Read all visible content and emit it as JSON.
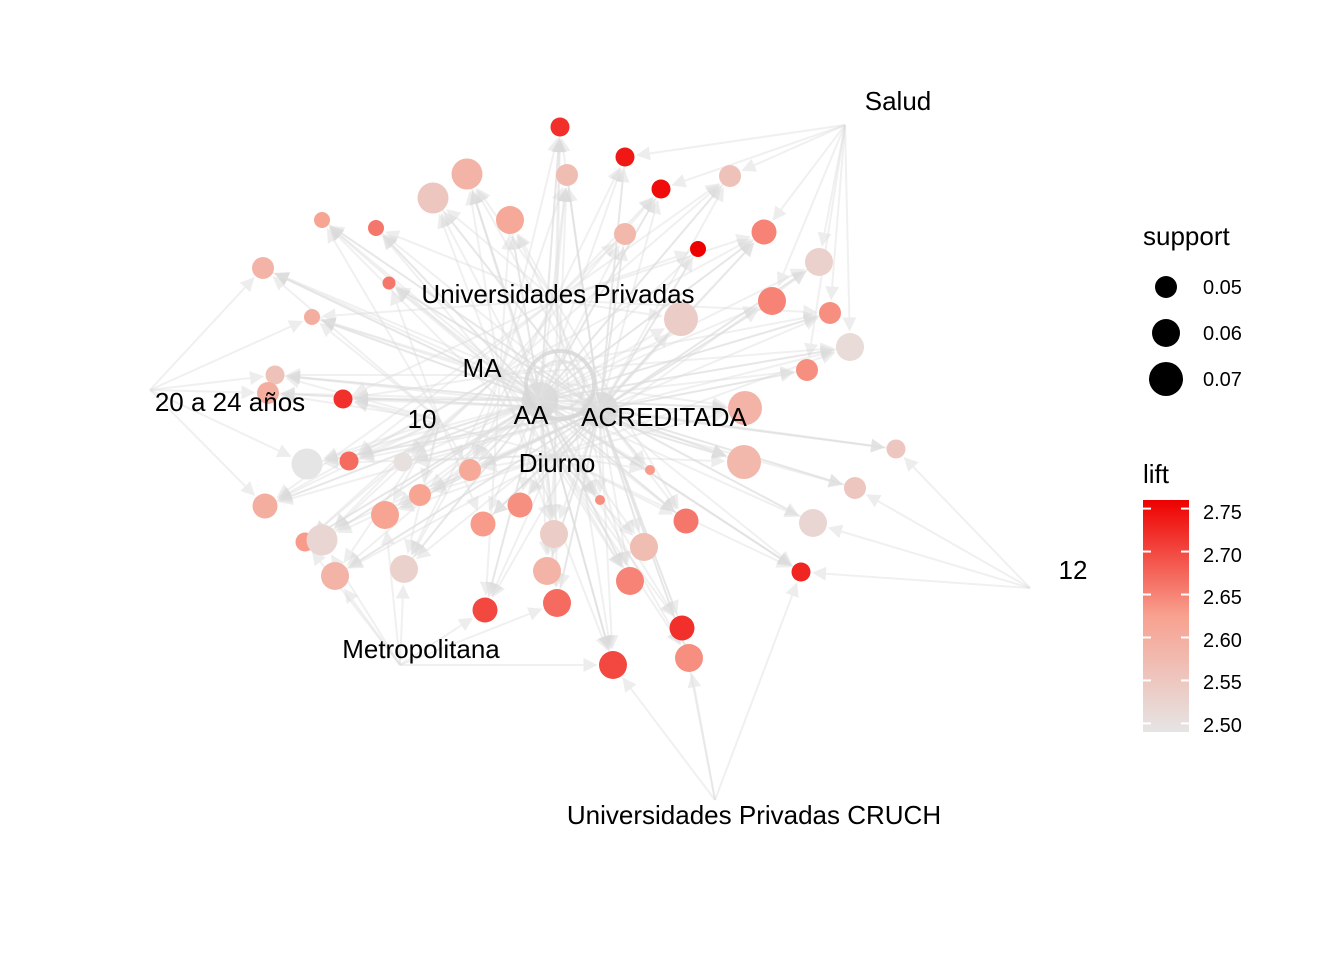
{
  "colors": {
    "edge": "#dedede",
    "lift_low": "#e5e5e5",
    "lift_high": "#ee0000",
    "background": "#ffffff"
  },
  "items": [
    {
      "id": "salud",
      "label": "Salud"
    },
    {
      "id": "univ_priv",
      "label": "Universidades Privadas"
    },
    {
      "id": "ma",
      "label": "MA"
    },
    {
      "id": "edad",
      "label": "20 a 24 años"
    },
    {
      "id": "diez",
      "label": "10"
    },
    {
      "id": "aa",
      "label": "AA"
    },
    {
      "id": "acreditada",
      "label": "ACREDITADA"
    },
    {
      "id": "diurno",
      "label": "Diurno"
    },
    {
      "id": "doce",
      "label": "12"
    },
    {
      "id": "metro",
      "label": "Metropolitana"
    },
    {
      "id": "cruch",
      "label": "Universidades Privadas CRUCH"
    }
  ],
  "legend": {
    "support": {
      "title": "support",
      "entries": [
        "0.05",
        "0.06",
        "0.07"
      ]
    },
    "lift": {
      "title": "lift",
      "ticks": [
        "2.75",
        "2.70",
        "2.65",
        "2.60",
        "2.55",
        "2.50"
      ],
      "range": [
        2.49,
        2.76
      ]
    }
  },
  "chart_data": {
    "type": "network",
    "size_variable": "support",
    "color_variable": "lift",
    "rules": [
      {
        "support": 0.05,
        "lift": 2.72
      },
      {
        "support": 0.05,
        "lift": 2.74
      },
      {
        "support": 0.05,
        "lift": 2.75
      },
      {
        "support": 0.055,
        "lift": 2.57
      },
      {
        "support": 0.055,
        "lift": 2.56
      },
      {
        "support": 0.045,
        "lift": 2.76
      },
      {
        "support": 0.07,
        "lift": 2.59
      },
      {
        "support": 0.07,
        "lift": 2.55
      },
      {
        "support": 0.065,
        "lift": 2.61
      },
      {
        "support": 0.045,
        "lift": 2.62
      },
      {
        "support": 0.045,
        "lift": 2.66
      },
      {
        "support": 0.055,
        "lift": 2.58
      },
      {
        "support": 0.06,
        "lift": 2.65
      },
      {
        "support": 0.04,
        "lift": 2.66
      },
      {
        "support": 0.055,
        "lift": 2.59
      },
      {
        "support": 0.065,
        "lift": 2.53
      },
      {
        "support": 0.045,
        "lift": 2.6
      },
      {
        "support": 0.075,
        "lift": 2.54
      },
      {
        "support": 0.065,
        "lift": 2.51
      },
      {
        "support": 0.065,
        "lift": 2.65
      },
      {
        "support": 0.055,
        "lift": 2.64
      },
      {
        "support": 0.07,
        "lift": 2.49
      },
      {
        "support": 0.05,
        "lift": 2.56
      },
      {
        "support": 0.055,
        "lift": 2.6
      },
      {
        "support": 0.05,
        "lift": 2.72
      },
      {
        "support": 0.055,
        "lift": 2.64
      },
      {
        "support": 0.075,
        "lift": 2.59
      },
      {
        "support": 0.05,
        "lift": 2.5
      },
      {
        "support": 0.05,
        "lift": 2.67
      },
      {
        "support": 0.05,
        "lift": 2.55
      },
      {
        "support": 0.075,
        "lift": 2.58
      },
      {
        "support": 0.055,
        "lift": 2.55
      },
      {
        "support": 0.06,
        "lift": 2.6
      },
      {
        "support": 0.065,
        "lift": 2.62
      },
      {
        "support": 0.05,
        "lift": 2.63
      },
      {
        "support": 0.065,
        "lift": 2.52
      },
      {
        "support": 0.06,
        "lift": 2.66
      },
      {
        "support": 0.06,
        "lift": 2.63
      },
      {
        "support": 0.065,
        "lift": 2.54
      },
      {
        "support": 0.065,
        "lift": 2.59
      },
      {
        "support": 0.065,
        "lift": 2.53
      },
      {
        "support": 0.065,
        "lift": 2.57
      },
      {
        "support": 0.05,
        "lift": 2.73
      },
      {
        "support": 0.065,
        "lift": 2.59
      },
      {
        "support": 0.065,
        "lift": 2.65
      },
      {
        "support": 0.065,
        "lift": 2.67
      },
      {
        "support": 0.06,
        "lift": 2.7
      },
      {
        "support": 0.06,
        "lift": 2.72
      },
      {
        "support": 0.065,
        "lift": 2.7
      },
      {
        "support": 0.065,
        "lift": 2.64
      },
      {
        "support": 0.07,
        "lift": 2.52
      },
      {
        "support": 0.055,
        "lift": 2.62
      },
      {
        "support": 0.055,
        "lift": 2.61
      },
      {
        "support": 0.06,
        "lift": 2.64
      },
      {
        "support": 0.035,
        "lift": 2.64
      },
      {
        "support": 0.035,
        "lift": 2.63
      }
    ]
  }
}
